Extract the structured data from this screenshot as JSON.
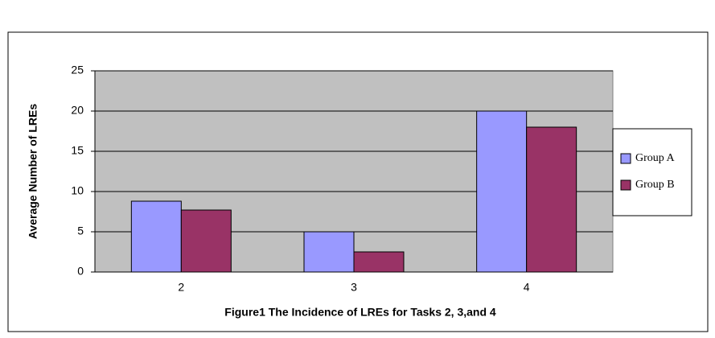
{
  "chart_data": {
    "type": "bar",
    "x_label": "Figure1 The Incidence of LREs for Tasks 2, 3,and 4",
    "y_label": "Average Number of LREs",
    "categories": [
      "2",
      "3",
      "4"
    ],
    "series": [
      {
        "name": "Group A",
        "color": "#9999ff",
        "values": [
          8.8,
          5,
          20
        ]
      },
      {
        "name": "Group B",
        "color": "#993366",
        "values": [
          7.7,
          2.5,
          18
        ]
      }
    ],
    "ylim": [
      0,
      25
    ],
    "yticks": [
      0,
      5,
      10,
      15,
      20,
      25
    ],
    "grid": true,
    "legend": "right"
  }
}
